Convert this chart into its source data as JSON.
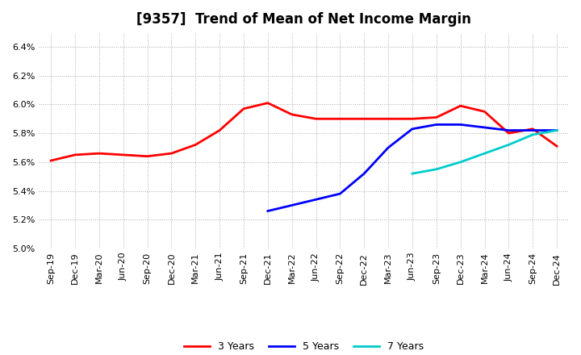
{
  "title": "[9357]  Trend of Mean of Net Income Margin",
  "x_labels": [
    "Sep-19",
    "Dec-19",
    "Mar-20",
    "Jun-20",
    "Sep-20",
    "Dec-20",
    "Mar-21",
    "Jun-21",
    "Sep-21",
    "Dec-21",
    "Mar-22",
    "Jun-22",
    "Sep-22",
    "Dec-22",
    "Mar-23",
    "Jun-23",
    "Sep-23",
    "Dec-23",
    "Mar-24",
    "Jun-24",
    "Sep-24",
    "Dec-24"
  ],
  "series": {
    "3 Years": {
      "color": "#FF0000",
      "data": [
        5.61,
        5.65,
        5.66,
        5.65,
        5.64,
        5.66,
        5.72,
        5.82,
        5.97,
        6.01,
        5.93,
        5.9,
        5.9,
        5.9,
        5.9,
        5.9,
        5.91,
        5.99,
        5.95,
        5.8,
        5.83,
        5.71
      ]
    },
    "5 Years": {
      "color": "#0000FF",
      "data": [
        null,
        null,
        null,
        null,
        null,
        null,
        null,
        null,
        null,
        5.26,
        5.3,
        5.34,
        5.38,
        5.52,
        5.7,
        5.83,
        5.86,
        5.86,
        5.84,
        5.82,
        5.82,
        5.82
      ]
    },
    "7 Years": {
      "color": "#00CCCC",
      "data": [
        null,
        null,
        null,
        null,
        null,
        null,
        null,
        null,
        null,
        null,
        null,
        null,
        null,
        null,
        null,
        5.52,
        5.55,
        5.6,
        5.66,
        5.72,
        5.79,
        5.82
      ]
    },
    "10 Years": {
      "color": "#006400",
      "data": [
        null,
        null,
        null,
        null,
        null,
        null,
        null,
        null,
        null,
        null,
        null,
        null,
        null,
        null,
        null,
        null,
        null,
        null,
        null,
        null,
        null,
        null
      ]
    }
  },
  "ylim": [
    5.0,
    6.5
  ],
  "yticks": [
    5.0,
    5.2,
    5.4,
    5.6,
    5.8,
    6.0,
    6.2,
    6.4
  ],
  "background_color": "#FFFFFF",
  "grid_color": "#AAAAAA"
}
